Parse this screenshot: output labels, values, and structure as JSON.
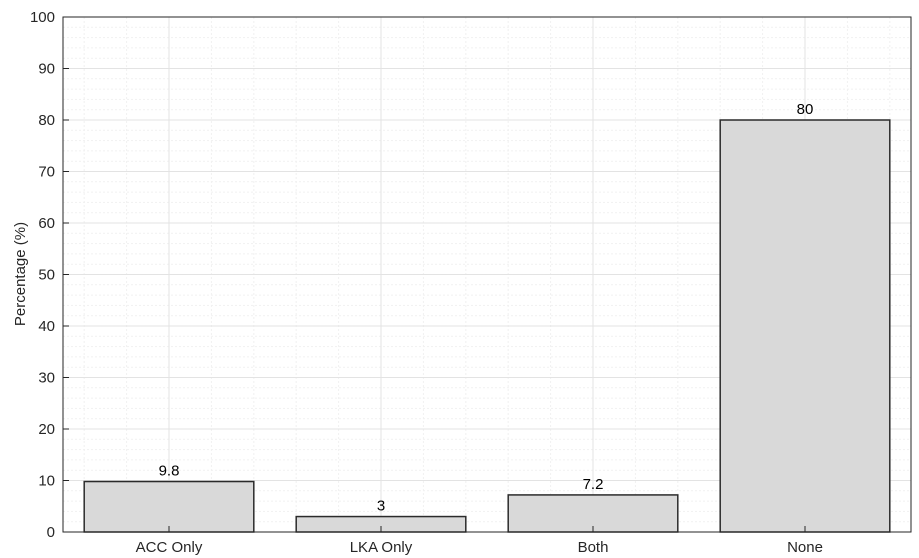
{
  "chart_data": {
    "type": "bar",
    "title": "",
    "xlabel": "",
    "ylabel": "Percentage (%)",
    "categories": [
      "ACC Only",
      "LKA Only",
      "Both",
      "None"
    ],
    "values": [
      9.8,
      3,
      7.2,
      80
    ],
    "data_labels": [
      "9.8",
      "3",
      "7.2",
      "80"
    ],
    "ylim": [
      0,
      100
    ],
    "yticks": [
      0,
      10,
      20,
      30,
      40,
      50,
      60,
      70,
      80,
      90,
      100
    ],
    "ytick_labels": [
      "0",
      "10",
      "20",
      "30",
      "40",
      "50",
      "60",
      "70",
      "80",
      "90",
      "100"
    ],
    "grid": true,
    "minor_grid": true,
    "bar_color": "#d9d9d9",
    "bar_edge_color": "#2b2b2b",
    "grid_color": "#e3e3e3",
    "minor_grid_color": "#f1f1f1",
    "axis_color": "#262626"
  }
}
